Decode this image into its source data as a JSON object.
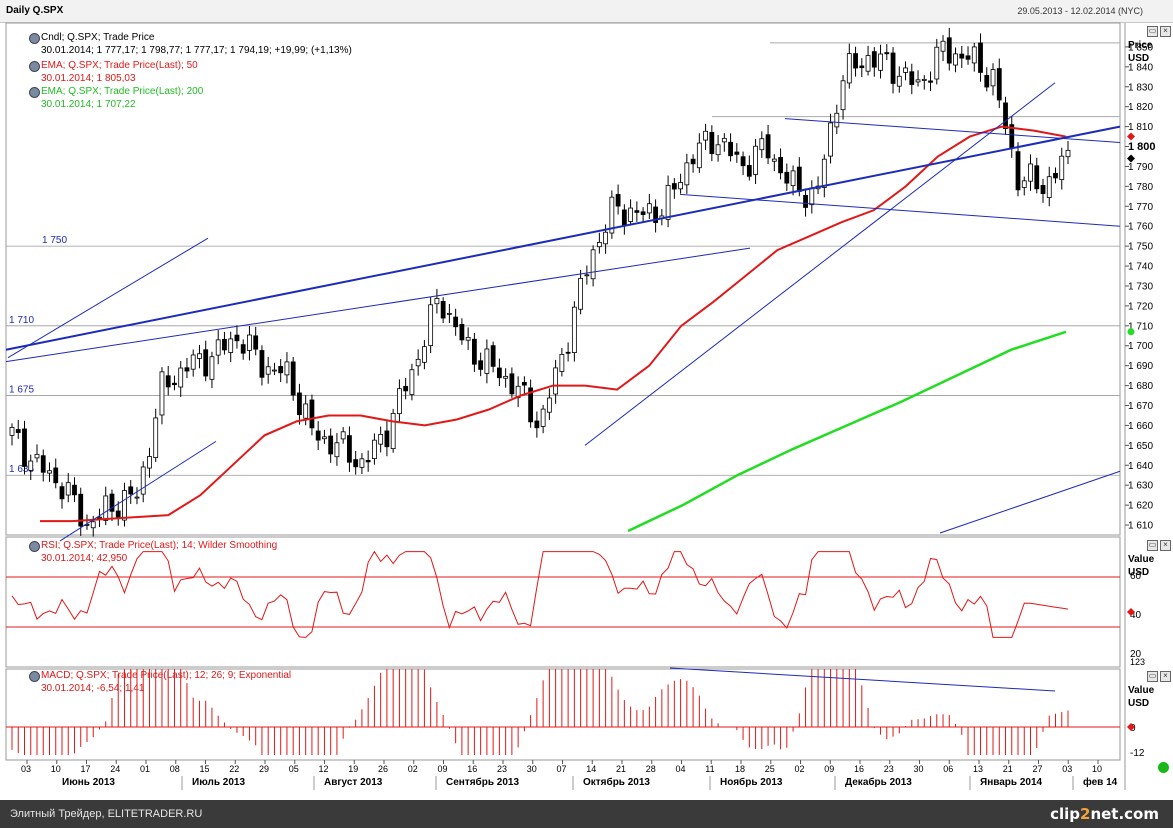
{
  "header": {
    "title": "Daily Q.SPX",
    "range": "29.05.2013 - 12.02.2014 (NYC)"
  },
  "footer": {
    "text": "Элитный Трейдер, ELITETRADER.RU",
    "logo_a": "clip",
    "logo_b": "2",
    "logo_c": "net.com"
  },
  "colors": {
    "ema50": "#e01818",
    "ema200": "#22dd22",
    "trend": "#1c2bb8",
    "rsi": "#e01818",
    "macd": "#e01818"
  },
  "main": {
    "axis_title": "Price",
    "axis_unit": "USD",
    "legend": [
      {
        "text": "Cndl; Q.SPX; Trade Price",
        "values": "30.01.2014; 1 777,17; 1 798,77; 1 777,17; 1 794,19; +19,99; (+1,13%)"
      },
      {
        "text": "EMA; Q.SPX; Trade Price(Last); 50",
        "values": "30.01.2014; 1 805,03"
      },
      {
        "text": "EMA; Q.SPX; Trade Price(Last); 200",
        "values": "30.01.2014; 1 707,22"
      }
    ],
    "price_labels": [
      "1 860",
      "1 850",
      "1 840",
      "1 830",
      "1 820",
      "1 810",
      "1 800",
      "1 790",
      "1 780",
      "1 770",
      "1 760",
      "1 750",
      "1 740",
      "1 730",
      "1 720",
      "1 710",
      "1 700",
      "1 690",
      "1 680",
      "1 670",
      "1 660",
      "1 650",
      "1 640",
      "1 630",
      "1 620",
      "1 610"
    ],
    "level_labels": [
      "1 750",
      "1 710",
      "1 675",
      "1 635"
    ]
  },
  "rsi": {
    "legend": "RSI; Q.SPX; Trade Price(Last); 14; Wilder Smoothing",
    "values": "30.01.2014; 42,950",
    "axis_title": "Value",
    "axis_unit": "USD",
    "ticks": [
      "60",
      "40",
      "20"
    ],
    "overflow": "123"
  },
  "macd": {
    "legend": "MACD; Q.SPX; Trade Price(Last); 12; 26; 9; Exponential",
    "values": "30.01.2014; -6,54; 1,41",
    "axis_title": "Value",
    "axis_unit": "USD",
    "ticks": [
      "0",
      "-12"
    ]
  },
  "xaxis": {
    "days": [
      "03",
      "10",
      "17",
      "24",
      "01",
      "08",
      "15",
      "22",
      "29",
      "05",
      "12",
      "19",
      "26",
      "02",
      "09",
      "16",
      "23",
      "30",
      "07",
      "14",
      "21",
      "28",
      "04",
      "11",
      "18",
      "25",
      "02",
      "09",
      "16",
      "23",
      "30",
      "06",
      "13",
      "21",
      "27",
      "03",
      "10"
    ],
    "months": [
      "Июнь 2013",
      "Июль 2013",
      "Август 2013",
      "Сентябрь 2013",
      "Октябрь 2013",
      "Ноябрь 2013",
      "Декабрь 2013",
      "Январь 2014",
      "фев 14"
    ]
  },
  "chart_data": {
    "type": "candlestick",
    "title": "Daily Q.SPX",
    "ylabel": "Price USD",
    "ylim": [
      1605,
      1862
    ],
    "weekly_close_path": [
      1655,
      1640,
      1630,
      1610,
      1620,
      1625,
      1680,
      1690,
      1695,
      1705,
      1690,
      1685,
      1655,
      1650,
      1640,
      1660,
      1690,
      1725,
      1700,
      1690,
      1680,
      1660,
      1700,
      1745,
      1770,
      1765,
      1770,
      1795,
      1805,
      1790,
      1800,
      1780,
      1775,
      1835,
      1845,
      1840,
      1830,
      1848,
      1845,
      1835,
      1785,
      1780,
      1794
    ],
    "ema50_path": [
      1612,
      1612,
      1613,
      1614,
      1615,
      1625,
      1640,
      1655,
      1662,
      1665,
      1665,
      1662,
      1660,
      1663,
      1668,
      1675,
      1680,
      1680,
      1678,
      1690,
      1710,
      1722,
      1735,
      1748,
      1755,
      1762,
      1768,
      1780,
      1795,
      1805,
      1810,
      1808,
      1805
    ],
    "ema200_path": [
      1607,
      1620,
      1635,
      1648,
      1660,
      1672,
      1685,
      1698,
      1707
    ],
    "last_candle": {
      "date": "30.01.2014",
      "open": 1777.17,
      "high": 1798.77,
      "low": 1777.17,
      "close": 1794.19,
      "change": 19.99,
      "change_pct": 1.13
    },
    "ema50_last": 1805.03,
    "ema200_last": 1707.22,
    "rsi_last": 42.95,
    "macd_last": -6.54,
    "signal_last": 1.41,
    "rsi_levels": [
      70,
      30
    ],
    "horizontal_levels": [
      1750,
      1710,
      1675,
      1635
    ]
  }
}
